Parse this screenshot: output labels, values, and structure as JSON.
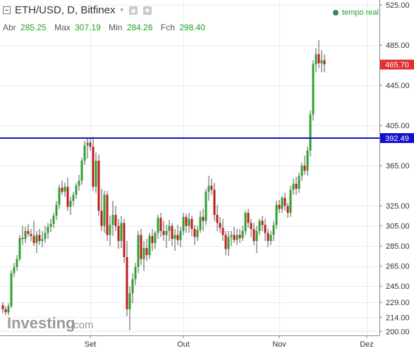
{
  "header": {
    "symbol_line": "ETH/USD, D, Bitfinex",
    "realtime_label": "tempo real",
    "ohlc": [
      {
        "key": "Abr",
        "value": "285.25"
      },
      {
        "key": "Max",
        "value": "307.19"
      },
      {
        "key": "Min",
        "value": "284.26"
      },
      {
        "key": "Fch",
        "value": "298.40"
      }
    ]
  },
  "watermark": {
    "brand": "Investing",
    "suffix": ".com"
  },
  "colors": {
    "up": "#2fa02f",
    "down": "#c01c1c",
    "hline": "#1010d0",
    "last_price": "#e03030",
    "grid": "#e6ebf2"
  },
  "chart_data": {
    "type": "candlestick",
    "title": "",
    "xlabel": "",
    "ylabel": "",
    "ylim": [
      196,
      530
    ],
    "y_ticks": [
      525,
      485,
      445,
      405,
      365,
      325,
      305,
      285,
      265,
      245,
      229,
      214,
      200
    ],
    "x_ticks": [
      {
        "label": "Set",
        "index": 31
      },
      {
        "label": "Out",
        "index": 64
      },
      {
        "label": "Nov",
        "index": 98
      },
      {
        "label": "Dez",
        "index": 129
      }
    ],
    "horizontal_line": {
      "value": 392.49,
      "label": "392.49"
    },
    "last_price": {
      "value": 465.7,
      "label": "465.70"
    },
    "candles": [
      [
        226,
        229,
        218,
        222
      ],
      [
        222,
        225,
        216,
        219
      ],
      [
        219,
        228,
        216,
        225
      ],
      [
        225,
        261,
        223,
        258
      ],
      [
        258,
        268,
        254,
        264
      ],
      [
        264,
        276,
        260,
        272
      ],
      [
        272,
        296,
        270,
        293
      ],
      [
        293,
        305,
        286,
        292
      ],
      [
        292,
        304,
        288,
        300
      ],
      [
        300,
        307,
        294,
        297
      ],
      [
        297,
        302,
        290,
        295
      ],
      [
        295,
        310,
        285,
        288
      ],
      [
        288,
        300,
        278,
        296
      ],
      [
        296,
        302,
        286,
        290
      ],
      [
        290,
        300,
        284,
        292
      ],
      [
        292,
        305,
        288,
        298
      ],
      [
        298,
        308,
        292,
        304
      ],
      [
        304,
        312,
        299,
        307
      ],
      [
        307,
        318,
        303,
        315
      ],
      [
        315,
        330,
        311,
        326
      ],
      [
        326,
        346,
        322,
        343
      ],
      [
        343,
        350,
        336,
        339
      ],
      [
        339,
        348,
        334,
        344
      ],
      [
        344,
        353,
        320,
        324
      ],
      [
        324,
        334,
        316,
        330
      ],
      [
        330,
        339,
        325,
        336
      ],
      [
        336,
        348,
        332,
        345
      ],
      [
        345,
        356,
        340,
        350
      ],
      [
        350,
        373,
        346,
        370
      ],
      [
        370,
        390,
        366,
        385
      ],
      [
        385,
        393,
        372,
        388
      ],
      [
        388,
        392,
        380,
        384
      ],
      [
        384,
        394,
        340,
        344
      ],
      [
        344,
        378,
        338,
        370
      ],
      [
        370,
        376,
        315,
        320
      ],
      [
        320,
        342,
        300,
        305
      ],
      [
        305,
        340,
        298,
        336
      ],
      [
        336,
        340,
        290,
        296
      ],
      [
        296,
        315,
        285,
        306
      ],
      [
        306,
        330,
        295,
        316
      ],
      [
        316,
        325,
        300,
        305
      ],
      [
        305,
        312,
        282,
        290
      ],
      [
        290,
        315,
        283,
        308
      ],
      [
        308,
        312,
        268,
        274
      ],
      [
        274,
        290,
        215,
        222
      ],
      [
        222,
        245,
        201,
        238
      ],
      [
        238,
        258,
        228,
        252
      ],
      [
        252,
        268,
        246,
        264
      ],
      [
        264,
        300,
        258,
        296
      ],
      [
        296,
        302,
        266,
        272
      ],
      [
        272,
        290,
        260,
        283
      ],
      [
        283,
        292,
        270,
        276
      ],
      [
        276,
        298,
        272,
        295
      ],
      [
        295,
        302,
        280,
        288
      ],
      [
        288,
        300,
        282,
        298
      ],
      [
        298,
        316,
        292,
        313
      ],
      [
        313,
        318,
        294,
        300
      ],
      [
        300,
        310,
        290,
        296
      ],
      [
        296,
        306,
        283,
        300
      ],
      [
        300,
        311,
        290,
        305
      ],
      [
        305,
        308,
        285,
        292
      ],
      [
        292,
        302,
        280,
        296
      ],
      [
        296,
        306,
        286,
        291
      ],
      [
        291,
        304,
        284,
        300
      ],
      [
        300,
        318,
        296,
        314
      ],
      [
        314,
        317,
        298,
        305
      ],
      [
        305,
        318,
        298,
        312
      ],
      [
        312,
        315,
        295,
        302
      ],
      [
        302,
        306,
        286,
        294
      ],
      [
        294,
        305,
        290,
        301
      ],
      [
        301,
        320,
        298,
        314
      ],
      [
        314,
        322,
        300,
        310
      ],
      [
        310,
        342,
        306,
        339
      ],
      [
        339,
        355,
        330,
        345
      ],
      [
        345,
        352,
        336,
        341
      ],
      [
        341,
        348,
        310,
        316
      ],
      [
        316,
        326,
        300,
        308
      ],
      [
        308,
        314,
        298,
        303
      ],
      [
        303,
        312,
        290,
        296
      ],
      [
        296,
        300,
        276,
        282
      ],
      [
        282,
        300,
        275,
        294
      ],
      [
        294,
        300,
        285,
        296
      ],
      [
        296,
        304,
        288,
        291
      ],
      [
        291,
        302,
        286,
        296
      ],
      [
        296,
        302,
        288,
        293
      ],
      [
        293,
        305,
        290,
        300
      ],
      [
        300,
        320,
        296,
        318
      ],
      [
        318,
        322,
        303,
        308
      ],
      [
        308,
        312,
        294,
        302
      ],
      [
        302,
        308,
        286,
        290
      ],
      [
        290,
        305,
        278,
        300
      ],
      [
        300,
        312,
        296,
        310
      ],
      [
        310,
        315,
        300,
        306
      ],
      [
        306,
        312,
        290,
        298
      ],
      [
        298,
        302,
        284,
        290
      ],
      [
        290,
        300,
        286,
        296
      ],
      [
        296,
        310,
        290,
        306
      ],
      [
        306,
        330,
        302,
        326
      ],
      [
        326,
        331,
        318,
        322
      ],
      [
        322,
        335,
        318,
        333
      ],
      [
        333,
        338,
        320,
        325
      ],
      [
        325,
        328,
        313,
        318
      ],
      [
        318,
        345,
        314,
        341
      ],
      [
        341,
        352,
        336,
        347
      ],
      [
        347,
        354,
        336,
        342
      ],
      [
        342,
        358,
        338,
        355
      ],
      [
        355,
        368,
        350,
        365
      ],
      [
        365,
        375,
        356,
        360
      ],
      [
        360,
        384,
        355,
        380
      ],
      [
        380,
        420,
        374,
        416
      ],
      [
        416,
        470,
        410,
        466
      ],
      [
        466,
        482,
        458,
        476
      ],
      [
        476,
        490,
        462,
        467
      ],
      [
        467,
        480,
        458,
        470
      ],
      [
        470,
        476,
        458,
        466
      ]
    ]
  }
}
